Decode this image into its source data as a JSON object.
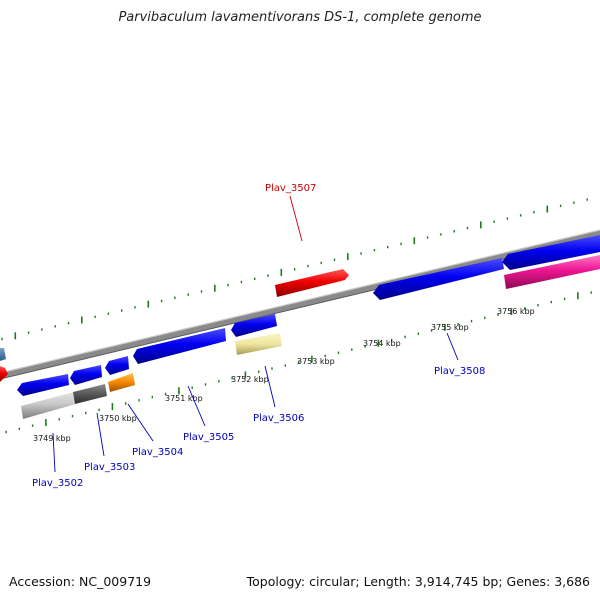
{
  "title": "Parvibaculum lavamentivorans DS-1, complete genome",
  "accession_text": "Accession: NC_009719",
  "topology_text": "Topology: circular; Length: 3,914,745 bp; Genes: 3,686",
  "colors": {
    "backbone": "#8a8a8a",
    "tick": "#1e7a1e",
    "label_forward": "#cc0000",
    "label_reverse": "#0000bb"
  },
  "scale_labels": [
    "3749 kbp",
    "3750 kbp",
    "3751 kbp",
    "3752 kbp",
    "3753 kbp",
    "3754 kbp",
    "3755 kbp",
    "3756 kbp"
  ],
  "gene_labels": [
    {
      "name": "Plav_3502",
      "strand": "reverse"
    },
    {
      "name": "Plav_3503",
      "strand": "reverse"
    },
    {
      "name": "Plav_3504",
      "strand": "reverse"
    },
    {
      "name": "Plav_3505",
      "strand": "reverse"
    },
    {
      "name": "Plav_3506",
      "strand": "reverse"
    },
    {
      "name": "Plav_3507",
      "strand": "forward"
    },
    {
      "name": "Plav_3508",
      "strand": "reverse"
    }
  ]
}
